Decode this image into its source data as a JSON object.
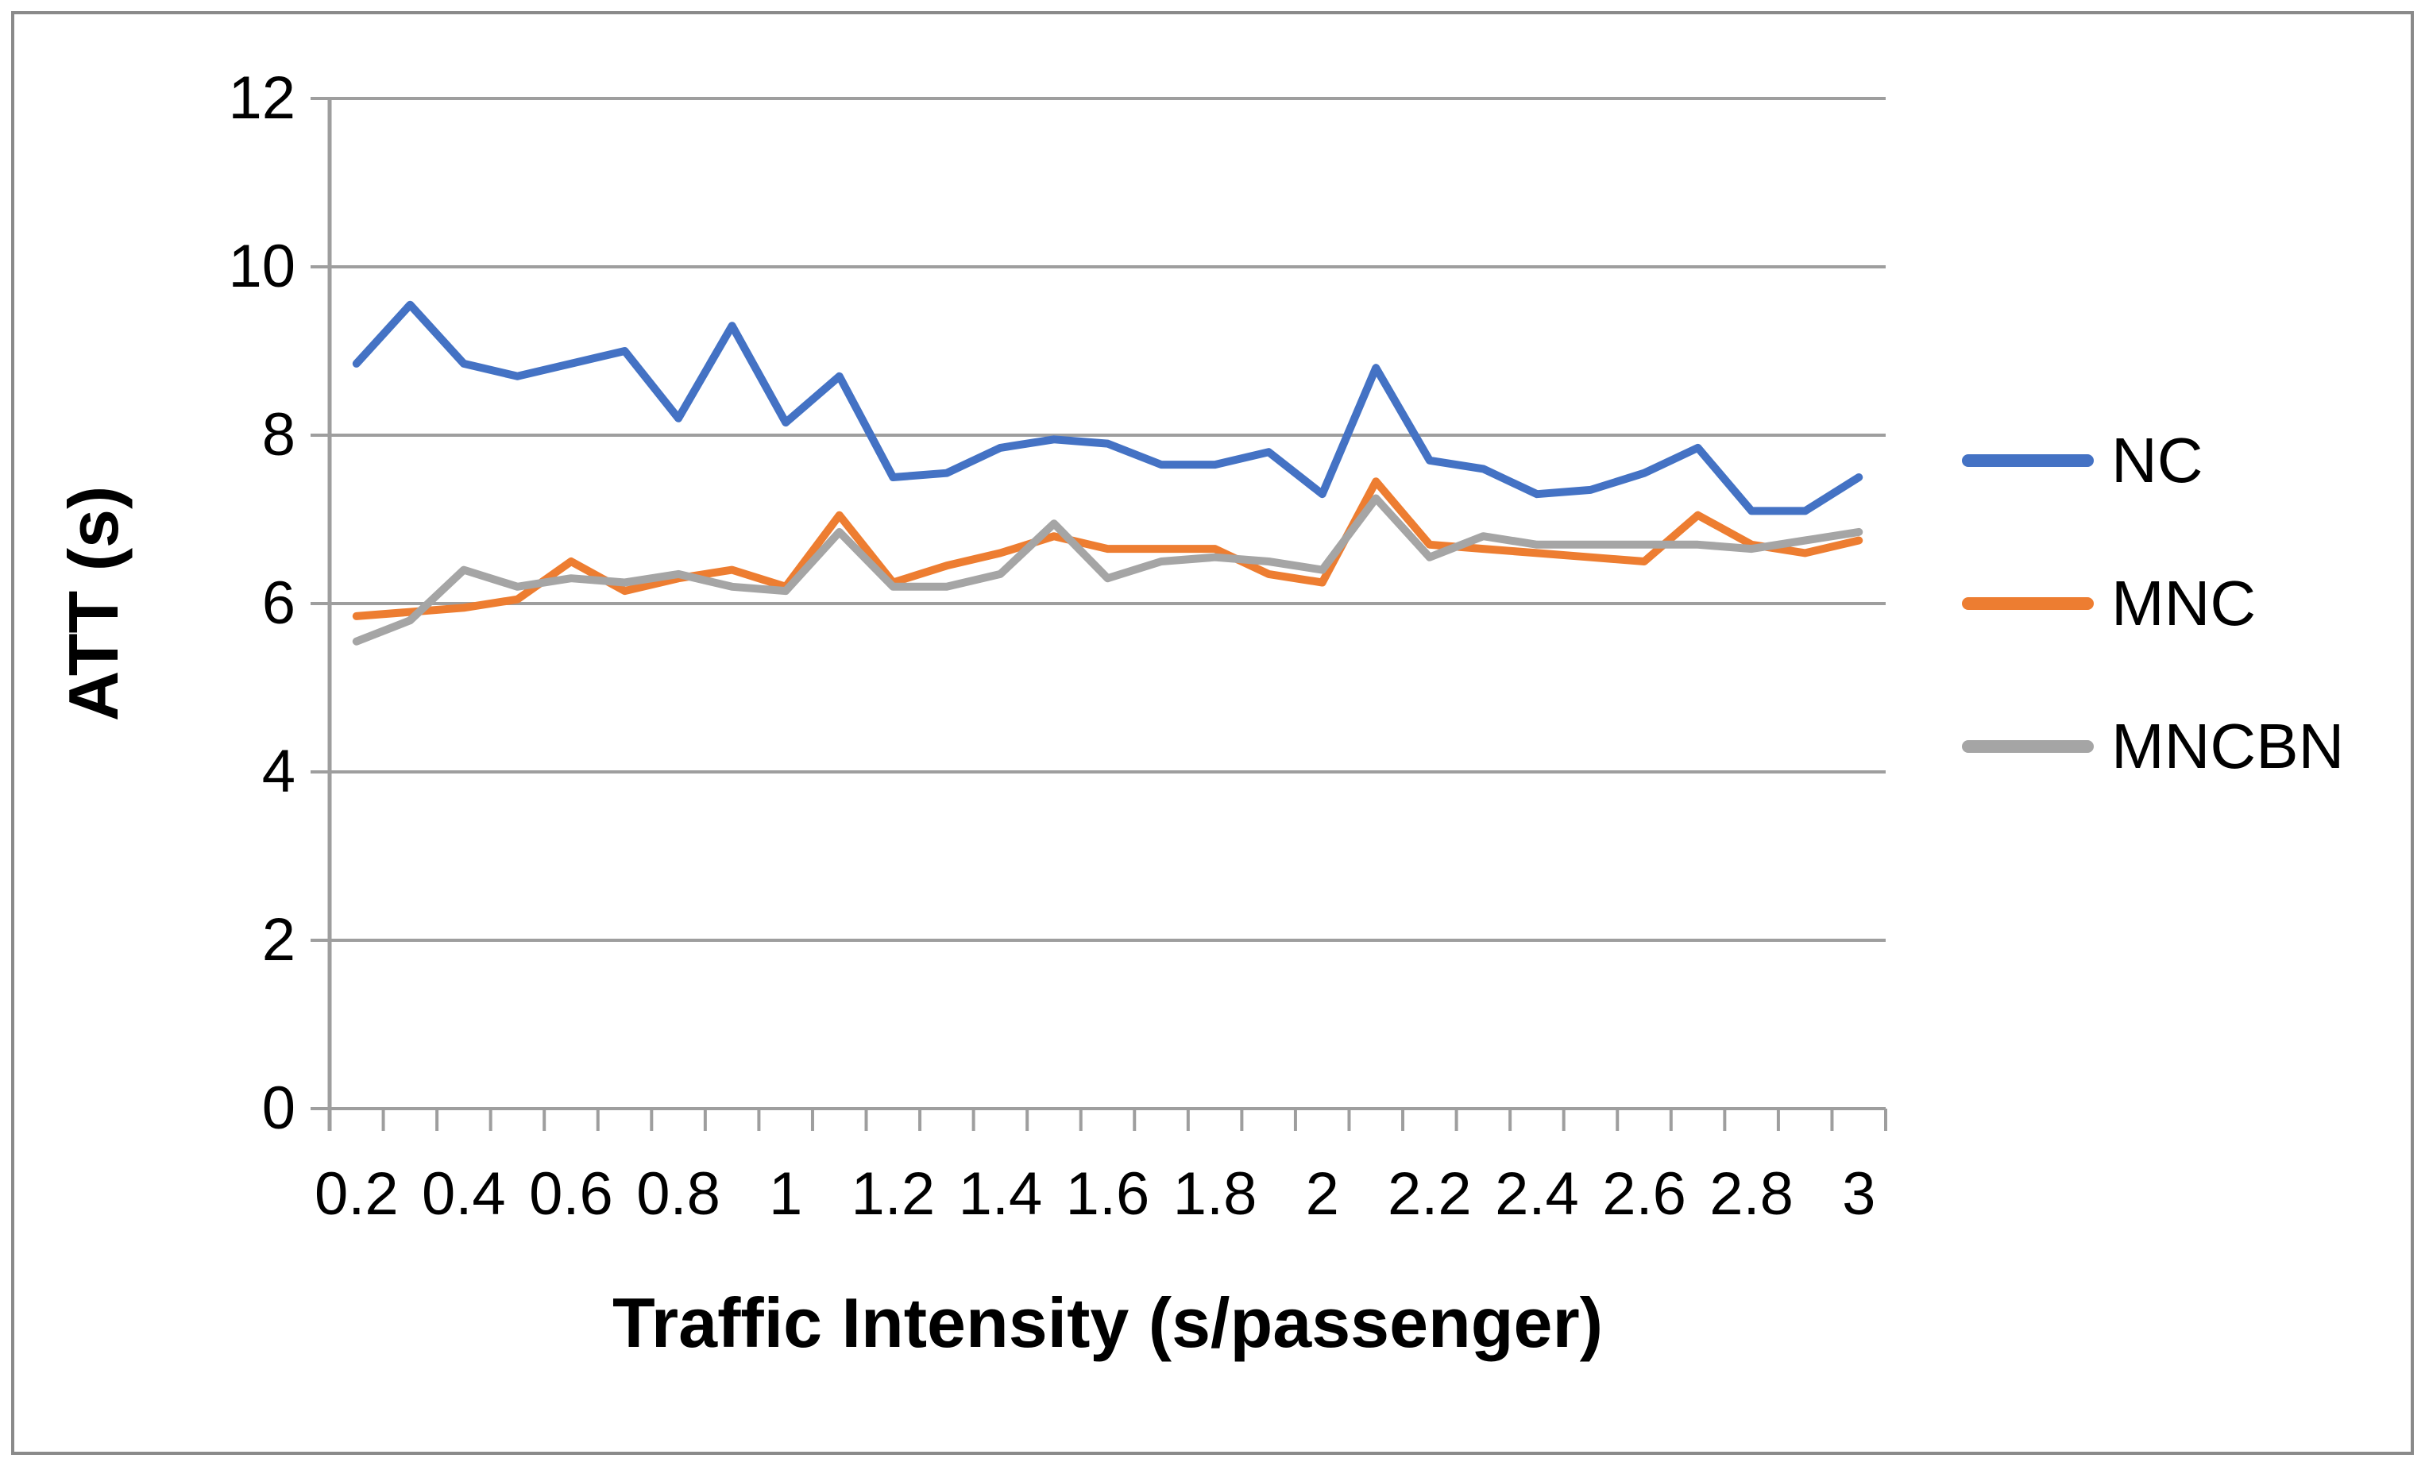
{
  "figure": {
    "background_color": "#FFFFFF",
    "border_color": "#8A8A8A",
    "text_color": "#000000"
  },
  "chart_data": {
    "type": "line",
    "title": "",
    "xlabel": "Traffic Intensity (s/passenger)",
    "ylabel": "ATT (s)",
    "x": [
      0.2,
      0.3,
      0.4,
      0.5,
      0.6,
      0.7,
      0.8,
      0.9,
      1.0,
      1.1,
      1.2,
      1.3,
      1.4,
      1.5,
      1.6,
      1.7,
      1.8,
      1.9,
      2.0,
      2.1,
      2.2,
      2.3,
      2.4,
      2.5,
      2.6,
      2.7,
      2.8,
      2.9,
      3.0
    ],
    "x_tick_labels": [
      "0.2",
      "0.4",
      "0.6",
      "0.8",
      "1",
      "1.2",
      "1.4",
      "1.6",
      "1.8",
      "2",
      "2.2",
      "2.4",
      "2.6",
      "2.8",
      "3"
    ],
    "y_ticks": [
      "0",
      "2",
      "4",
      "6",
      "8",
      "10",
      "12"
    ],
    "ylim": [
      0,
      12
    ],
    "grid": true,
    "gridline_color": "#9E9E9E",
    "axis_color": "#9E9E9E",
    "legend_position": "right",
    "series": [
      {
        "name": "NC",
        "color": "#4472C4",
        "values": [
          8.85,
          9.55,
          8.85,
          8.7,
          8.85,
          9.0,
          8.2,
          9.3,
          8.15,
          8.7,
          7.5,
          7.55,
          7.85,
          7.95,
          7.9,
          7.65,
          7.65,
          7.8,
          7.3,
          8.8,
          7.7,
          7.6,
          7.3,
          7.35,
          7.55,
          7.85,
          7.1,
          7.1,
          7.5
        ]
      },
      {
        "name": "MNC",
        "color": "#ED7D31",
        "values": [
          5.85,
          5.9,
          5.95,
          6.05,
          6.5,
          6.15,
          6.3,
          6.4,
          6.2,
          7.05,
          6.25,
          6.45,
          6.6,
          6.8,
          6.65,
          6.65,
          6.65,
          6.35,
          6.25,
          7.45,
          6.7,
          6.65,
          6.6,
          6.55,
          6.5,
          7.05,
          6.7,
          6.6,
          6.75
        ]
      },
      {
        "name": "MNCBN",
        "color": "#A5A5A5",
        "values": [
          5.55,
          5.8,
          6.4,
          6.2,
          6.3,
          6.25,
          6.35,
          6.2,
          6.15,
          6.85,
          6.2,
          6.2,
          6.35,
          6.95,
          6.3,
          6.5,
          6.55,
          6.5,
          6.4,
          7.25,
          6.55,
          6.8,
          6.7,
          6.7,
          6.7,
          6.7,
          6.65,
          6.75,
          6.85
        ]
      }
    ]
  }
}
